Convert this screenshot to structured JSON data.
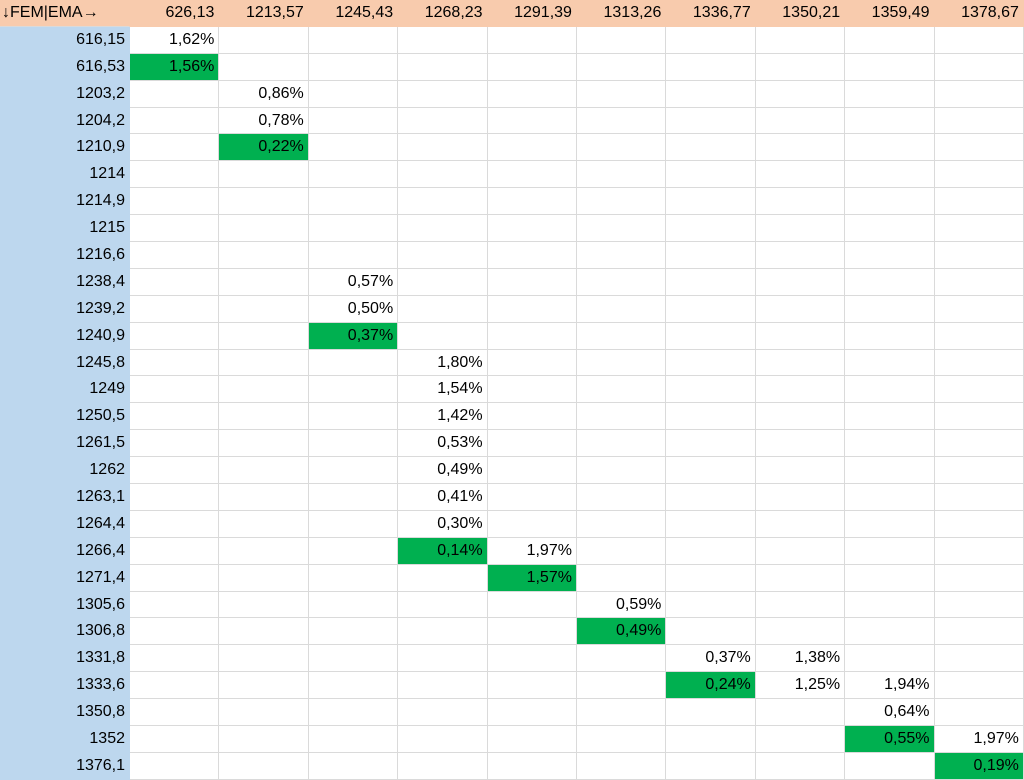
{
  "corner_label": "↓FEM|EMA→",
  "columns": [
    "626,13",
    "1213,57",
    "1245,43",
    "1268,23",
    "1291,39",
    "1313,26",
    "1336,77",
    "1350,21",
    "1359,49",
    "1378,67"
  ],
  "colors": {
    "header_bg": "#f8cbad",
    "row_header_bg": "#bdd7ee",
    "highlight": "#00b050",
    "gridline": "#dadada"
  },
  "rows": [
    {
      "label": "616,15",
      "cells": [
        "1,62%",
        "",
        "",
        "",
        "",
        "",
        "",
        "",
        "",
        ""
      ],
      "highlight": []
    },
    {
      "label": "616,53",
      "cells": [
        "1,56%",
        "",
        "",
        "",
        "",
        "",
        "",
        "",
        "",
        ""
      ],
      "highlight": [
        0
      ]
    },
    {
      "label": "1203,2",
      "cells": [
        "",
        "0,86%",
        "",
        "",
        "",
        "",
        "",
        "",
        "",
        ""
      ],
      "highlight": []
    },
    {
      "label": "1204,2",
      "cells": [
        "",
        "0,78%",
        "",
        "",
        "",
        "",
        "",
        "",
        "",
        ""
      ],
      "highlight": []
    },
    {
      "label": "1210,9",
      "cells": [
        "",
        "0,22%",
        "",
        "",
        "",
        "",
        "",
        "",
        "",
        ""
      ],
      "highlight": [
        1
      ]
    },
    {
      "label": "1214",
      "cells": [
        "",
        "",
        "",
        "",
        "",
        "",
        "",
        "",
        "",
        ""
      ],
      "highlight": []
    },
    {
      "label": "1214,9",
      "cells": [
        "",
        "",
        "",
        "",
        "",
        "",
        "",
        "",
        "",
        ""
      ],
      "highlight": []
    },
    {
      "label": "1215",
      "cells": [
        "",
        "",
        "",
        "",
        "",
        "",
        "",
        "",
        "",
        ""
      ],
      "highlight": []
    },
    {
      "label": "1216,6",
      "cells": [
        "",
        "",
        "",
        "",
        "",
        "",
        "",
        "",
        "",
        ""
      ],
      "highlight": []
    },
    {
      "label": "1238,4",
      "cells": [
        "",
        "",
        "0,57%",
        "",
        "",
        "",
        "",
        "",
        "",
        ""
      ],
      "highlight": []
    },
    {
      "label": "1239,2",
      "cells": [
        "",
        "",
        "0,50%",
        "",
        "",
        "",
        "",
        "",
        "",
        ""
      ],
      "highlight": []
    },
    {
      "label": "1240,9",
      "cells": [
        "",
        "",
        "0,37%",
        "",
        "",
        "",
        "",
        "",
        "",
        ""
      ],
      "highlight": [
        2
      ]
    },
    {
      "label": "1245,8",
      "cells": [
        "",
        "",
        "",
        "1,80%",
        "",
        "",
        "",
        "",
        "",
        ""
      ],
      "highlight": []
    },
    {
      "label": "1249",
      "cells": [
        "",
        "",
        "",
        "1,54%",
        "",
        "",
        "",
        "",
        "",
        ""
      ],
      "highlight": []
    },
    {
      "label": "1250,5",
      "cells": [
        "",
        "",
        "",
        "1,42%",
        "",
        "",
        "",
        "",
        "",
        ""
      ],
      "highlight": []
    },
    {
      "label": "1261,5",
      "cells": [
        "",
        "",
        "",
        "0,53%",
        "",
        "",
        "",
        "",
        "",
        ""
      ],
      "highlight": []
    },
    {
      "label": "1262",
      "cells": [
        "",
        "",
        "",
        "0,49%",
        "",
        "",
        "",
        "",
        "",
        ""
      ],
      "highlight": []
    },
    {
      "label": "1263,1",
      "cells": [
        "",
        "",
        "",
        "0,41%",
        "",
        "",
        "",
        "",
        "",
        ""
      ],
      "highlight": []
    },
    {
      "label": "1264,4",
      "cells": [
        "",
        "",
        "",
        "0,30%",
        "",
        "",
        "",
        "",
        "",
        ""
      ],
      "highlight": []
    },
    {
      "label": "1266,4",
      "cells": [
        "",
        "",
        "",
        "0,14%",
        "1,97%",
        "",
        "",
        "",
        "",
        ""
      ],
      "highlight": [
        3
      ]
    },
    {
      "label": "1271,4",
      "cells": [
        "",
        "",
        "",
        "",
        "1,57%",
        "",
        "",
        "",
        "",
        ""
      ],
      "highlight": [
        4
      ]
    },
    {
      "label": "1305,6",
      "cells": [
        "",
        "",
        "",
        "",
        "",
        "0,59%",
        "",
        "",
        "",
        ""
      ],
      "highlight": []
    },
    {
      "label": "1306,8",
      "cells": [
        "",
        "",
        "",
        "",
        "",
        "0,49%",
        "",
        "",
        "",
        ""
      ],
      "highlight": [
        5
      ]
    },
    {
      "label": "1331,8",
      "cells": [
        "",
        "",
        "",
        "",
        "",
        "",
        "0,37%",
        "1,38%",
        "",
        ""
      ],
      "highlight": []
    },
    {
      "label": "1333,6",
      "cells": [
        "",
        "",
        "",
        "",
        "",
        "",
        "0,24%",
        "1,25%",
        "1,94%",
        ""
      ],
      "highlight": [
        6
      ]
    },
    {
      "label": "1350,8",
      "cells": [
        "",
        "",
        "",
        "",
        "",
        "",
        "",
        "",
        "0,64%",
        ""
      ],
      "highlight": []
    },
    {
      "label": "1352",
      "cells": [
        "",
        "",
        "",
        "",
        "",
        "",
        "",
        "",
        "0,55%",
        "1,97%"
      ],
      "highlight": [
        8
      ]
    },
    {
      "label": "1376,1",
      "cells": [
        "",
        "",
        "",
        "",
        "",
        "",
        "",
        "",
        "",
        "0,19%"
      ],
      "highlight": [
        9
      ]
    }
  ]
}
